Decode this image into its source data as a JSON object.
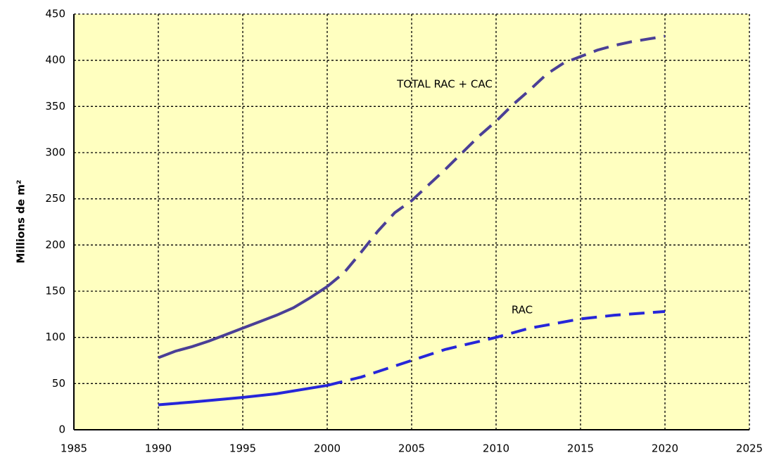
{
  "chart_data": {
    "type": "line",
    "ylabel": "Millions de m²",
    "xlim": [
      1985,
      2025
    ],
    "xticks": [
      1985,
      1990,
      1995,
      2000,
      2005,
      2010,
      2015,
      2020,
      2025
    ],
    "ylim": [
      0,
      450
    ],
    "yticks": [
      0,
      50,
      100,
      150,
      200,
      250,
      300,
      350,
      400,
      450
    ],
    "grid": true,
    "background": "#ffffc0",
    "dashed_after": 2000,
    "series": [
      {
        "name": "TOTAL RAC + CAC",
        "color": "#4a3f96",
        "x": [
          1990,
          1991,
          1992,
          1993,
          1994,
          1995,
          1996,
          1997,
          1998,
          1999,
          2000,
          2001,
          2002,
          2003,
          2004,
          2005,
          2006,
          2007,
          2008,
          2009,
          2010,
          2011,
          2012,
          2013,
          2014,
          2015,
          2016,
          2017,
          2018,
          2019,
          2020
        ],
        "values": [
          78,
          85,
          90,
          96,
          103,
          110,
          117,
          124,
          132,
          143,
          155,
          170,
          192,
          215,
          235,
          248,
          265,
          282,
          300,
          318,
          334,
          352,
          368,
          385,
          397,
          404,
          411,
          416,
          420,
          423,
          426
        ]
      },
      {
        "name": "RAC",
        "color": "#2626d9",
        "x": [
          1990,
          1992,
          1995,
          1997,
          2000,
          2002,
          2005,
          2007,
          2010,
          2012,
          2015,
          2017,
          2020
        ],
        "values": [
          27,
          30,
          35,
          39,
          48,
          57,
          75,
          87,
          100,
          110,
          120,
          124,
          128
        ]
      }
    ]
  }
}
